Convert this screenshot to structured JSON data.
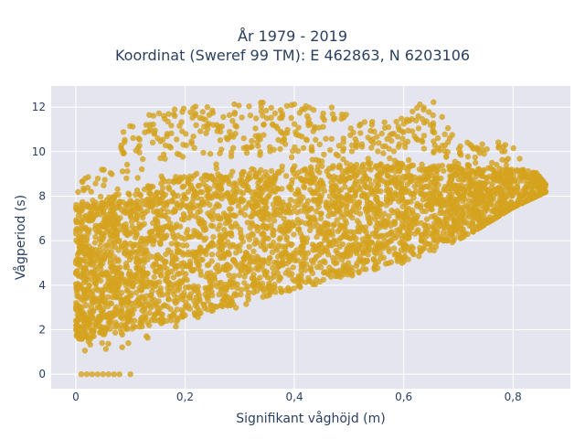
{
  "chart_data": {
    "type": "scatter",
    "title_lines": [
      "År 1979 - 2019",
      "Koordinat (Sweref 99 TM): E 462863, N 6203106"
    ],
    "xlabel": "Signifikant våghöjd (m)",
    "ylabel": "Vågperiod (s)",
    "xlim": [
      -0.045,
      0.905
    ],
    "ylim": [
      -0.65,
      12.95
    ],
    "x_ticks": [
      0,
      0.2,
      0.4,
      0.6,
      0.8
    ],
    "x_tick_labels": [
      "0",
      "0,2",
      "0,4",
      "0,6",
      "0,8"
    ],
    "y_ticks": [
      0,
      2,
      4,
      6,
      8,
      10,
      12
    ],
    "y_tick_labels": [
      "0",
      "2",
      "4",
      "6",
      "8",
      "10",
      "12"
    ],
    "grid": true,
    "marker_color": "#D4A21E",
    "plot_background": "#E5E5F0",
    "point_cloud": {
      "x_range": [
        0.0,
        0.86
      ],
      "y_range": [
        0.0,
        12.5
      ],
      "lower_envelope": [
        [
          0.0,
          1.0
        ],
        [
          0.1,
          1.2
        ],
        [
          0.2,
          2.3
        ],
        [
          0.3,
          3.0
        ],
        [
          0.4,
          3.6
        ],
        [
          0.5,
          4.3
        ],
        [
          0.6,
          5.0
        ],
        [
          0.7,
          6.0
        ],
        [
          0.8,
          7.5
        ],
        [
          0.86,
          8.2
        ]
      ],
      "upper_envelope": [
        [
          0.0,
          8.5
        ],
        [
          0.05,
          9.5
        ],
        [
          0.1,
          11.5
        ],
        [
          0.2,
          12.0
        ],
        [
          0.3,
          12.3
        ],
        [
          0.45,
          12.2
        ],
        [
          0.55,
          11.3
        ],
        [
          0.65,
          12.4
        ],
        [
          0.7,
          10.5
        ],
        [
          0.8,
          10.4
        ],
        [
          0.86,
          8.5
        ]
      ],
      "dense_band": [
        [
          0.0,
          1.5,
          7.5
        ],
        [
          0.2,
          2.5,
          9.0
        ],
        [
          0.4,
          3.8,
          9.3
        ],
        [
          0.6,
          5.0,
          9.5
        ],
        [
          0.8,
          7.0,
          9.2
        ]
      ],
      "zero_period_points": [
        [
          0.01,
          0
        ],
        [
          0.02,
          0
        ],
        [
          0.03,
          0
        ],
        [
          0.04,
          0
        ],
        [
          0.05,
          0
        ],
        [
          0.06,
          0
        ],
        [
          0.07,
          0
        ],
        [
          0.08,
          0
        ],
        [
          0.1,
          0
        ]
      ]
    }
  }
}
